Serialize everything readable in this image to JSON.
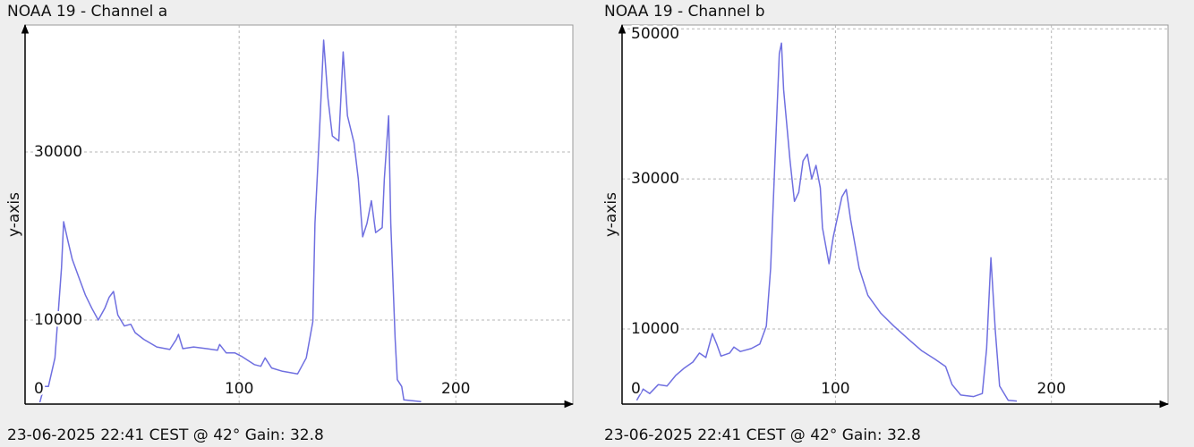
{
  "chart_data": [
    {
      "type": "line",
      "title": "NOAA 19 - Channel a",
      "ylabel": "y-axis",
      "footer": "23-06-2025 22:41 CEST @ 42° Gain: 32.8",
      "color": "#6f6fe0",
      "grid": true,
      "xlim": [
        1.2,
        254
      ],
      "xticks": [
        100,
        200
      ],
      "ylim": [
        0,
        45100
      ],
      "yticks": [
        0,
        10000,
        30000
      ],
      "x": [
        8,
        10,
        12,
        15,
        18,
        19,
        21,
        23,
        26,
        29,
        32,
        35,
        38,
        40,
        42,
        44,
        47,
        50,
        52,
        56,
        62,
        68,
        71,
        72,
        74,
        79,
        85,
        90,
        91,
        94,
        98,
        101,
        107,
        110,
        112,
        115,
        120,
        127,
        131,
        134,
        135,
        137,
        139,
        141,
        143,
        146,
        148,
        150,
        153,
        155,
        157,
        159,
        161,
        163,
        166,
        167,
        169,
        170,
        172,
        173,
        175,
        176,
        184
      ],
      "values": [
        200,
        2100,
        2100,
        5500,
        16200,
        21700,
        19400,
        17200,
        15100,
        13000,
        11400,
        10000,
        11400,
        12700,
        13400,
        10600,
        9300,
        9500,
        8500,
        7700,
        6800,
        6500,
        7700,
        8300,
        6600,
        6800,
        6600,
        6400,
        7100,
        6100,
        6100,
        5700,
        4700,
        4500,
        5500,
        4300,
        3900,
        3600,
        5500,
        9800,
        21500,
        32100,
        43300,
        36400,
        31900,
        31300,
        41900,
        34300,
        31100,
        26800,
        19900,
        21500,
        24200,
        20400,
        21000,
        26800,
        34300,
        21500,
        7700,
        2900,
        2100,
        500,
        300
      ]
    },
    {
      "type": "line",
      "title": "NOAA 19 - Channel b",
      "ylabel": "y-axis",
      "footer": "23-06-2025 22:41 CEST @ 42° Gain: 32.8",
      "color": "#6f6fe0",
      "grid": true,
      "xlim": [
        1.2,
        254
      ],
      "xticks": [
        100,
        200
      ],
      "ylim": [
        0,
        50500
      ],
      "yticks": [
        0,
        10000,
        30000,
        50000
      ],
      "x": [
        8,
        11,
        14,
        18,
        22,
        26,
        30,
        34,
        37,
        40,
        43,
        45,
        47,
        51,
        53,
        56,
        61,
        65,
        68,
        70,
        72,
        74,
        75,
        76,
        79,
        81,
        83,
        85,
        87,
        89,
        91,
        93,
        94,
        97,
        99,
        103,
        105,
        107,
        111,
        115,
        121,
        127,
        134,
        140,
        146,
        151,
        154,
        158,
        164,
        168,
        170,
        172,
        174,
        176,
        180,
        184
      ],
      "values": [
        500,
        2000,
        1400,
        2600,
        2400,
        3800,
        4800,
        5600,
        6800,
        6200,
        9400,
        8000,
        6400,
        6800,
        7600,
        7000,
        7400,
        8000,
        10400,
        18100,
        32400,
        46700,
        48100,
        41900,
        32400,
        27000,
        28200,
        32400,
        33300,
        30000,
        31800,
        28800,
        23500,
        18700,
        22300,
        27600,
        28600,
        24600,
        18100,
        14500,
        12100,
        10400,
        8600,
        7100,
        6000,
        5000,
        2600,
        1200,
        1000,
        1400,
        7400,
        19500,
        9800,
        2400,
        500,
        400
      ]
    }
  ]
}
